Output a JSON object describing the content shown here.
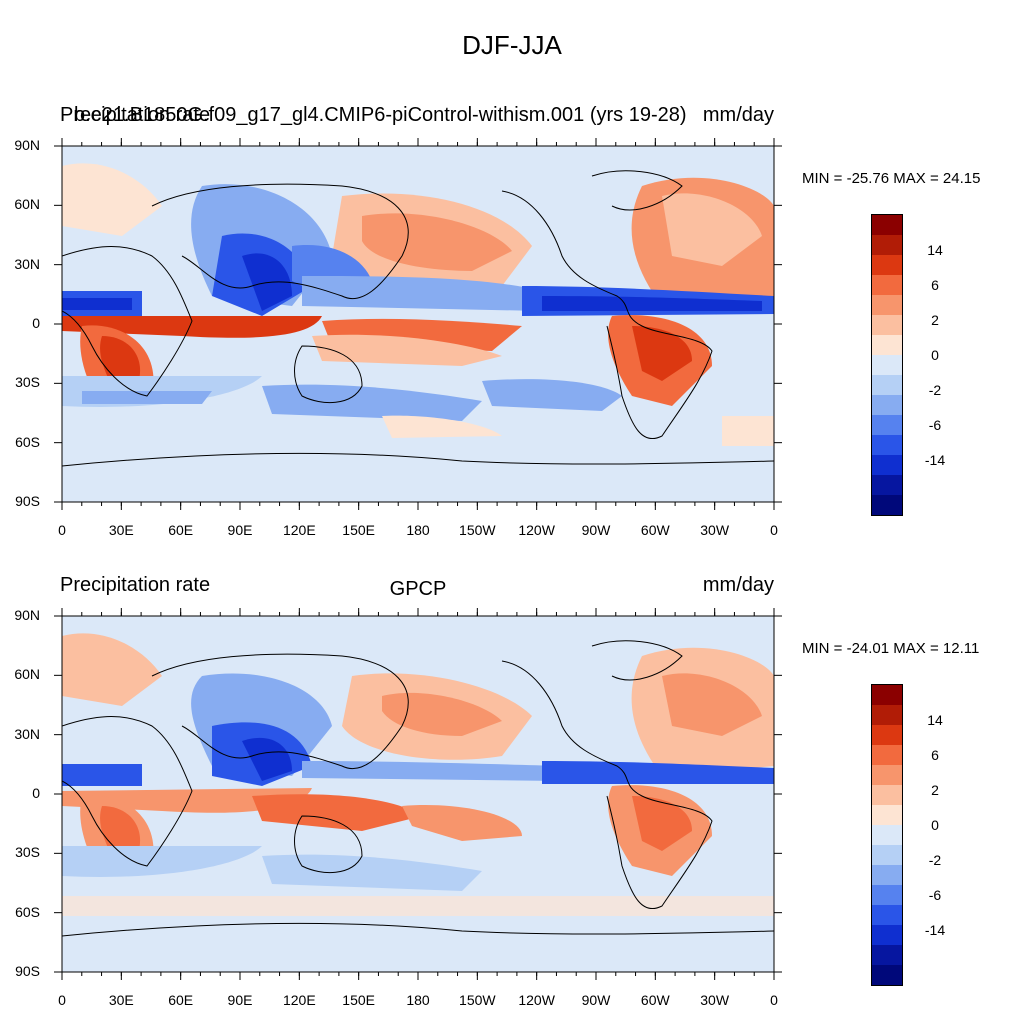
{
  "title": "DJF-JJA",
  "panels": [
    {
      "left_text": "Precipitation rate",
      "overlay_text": "b.e21.B1850G.f09_g17_gl4.CMIP6-piControl-withism.001 (yrs 19-28)",
      "center_text": "",
      "right_text": "mm/day",
      "minmax": "MIN = -25.76 MAX =  24.15"
    },
    {
      "left_text": "Precipitation rate",
      "overlay_text": "",
      "center_text": "GPCP",
      "right_text": "mm/day",
      "minmax": "MIN = -24.01 MAX =  12.11"
    }
  ],
  "axes": {
    "y_ticks": [
      "90N",
      "60N",
      "30N",
      "0",
      "30S",
      "60S",
      "90S"
    ],
    "x_ticks": [
      "0",
      "30E",
      "60E",
      "90E",
      "120E",
      "150E",
      "180",
      "150W",
      "120W",
      "90W",
      "60W",
      "30W",
      "0"
    ]
  },
  "colorbar": {
    "labels": [
      "14",
      "6",
      "2",
      "0",
      "-2",
      "-6",
      "-14"
    ],
    "colors": [
      "#8b0000",
      "#b11c06",
      "#dc3811",
      "#f26a3e",
      "#f7956c",
      "#fbbfa0",
      "#fde4d3",
      "#dbe8f8",
      "#b5d0f5",
      "#87acf1",
      "#5682ef",
      "#2a55e8",
      "#0f2fd0",
      "#0616a0",
      "#00087a"
    ]
  }
}
